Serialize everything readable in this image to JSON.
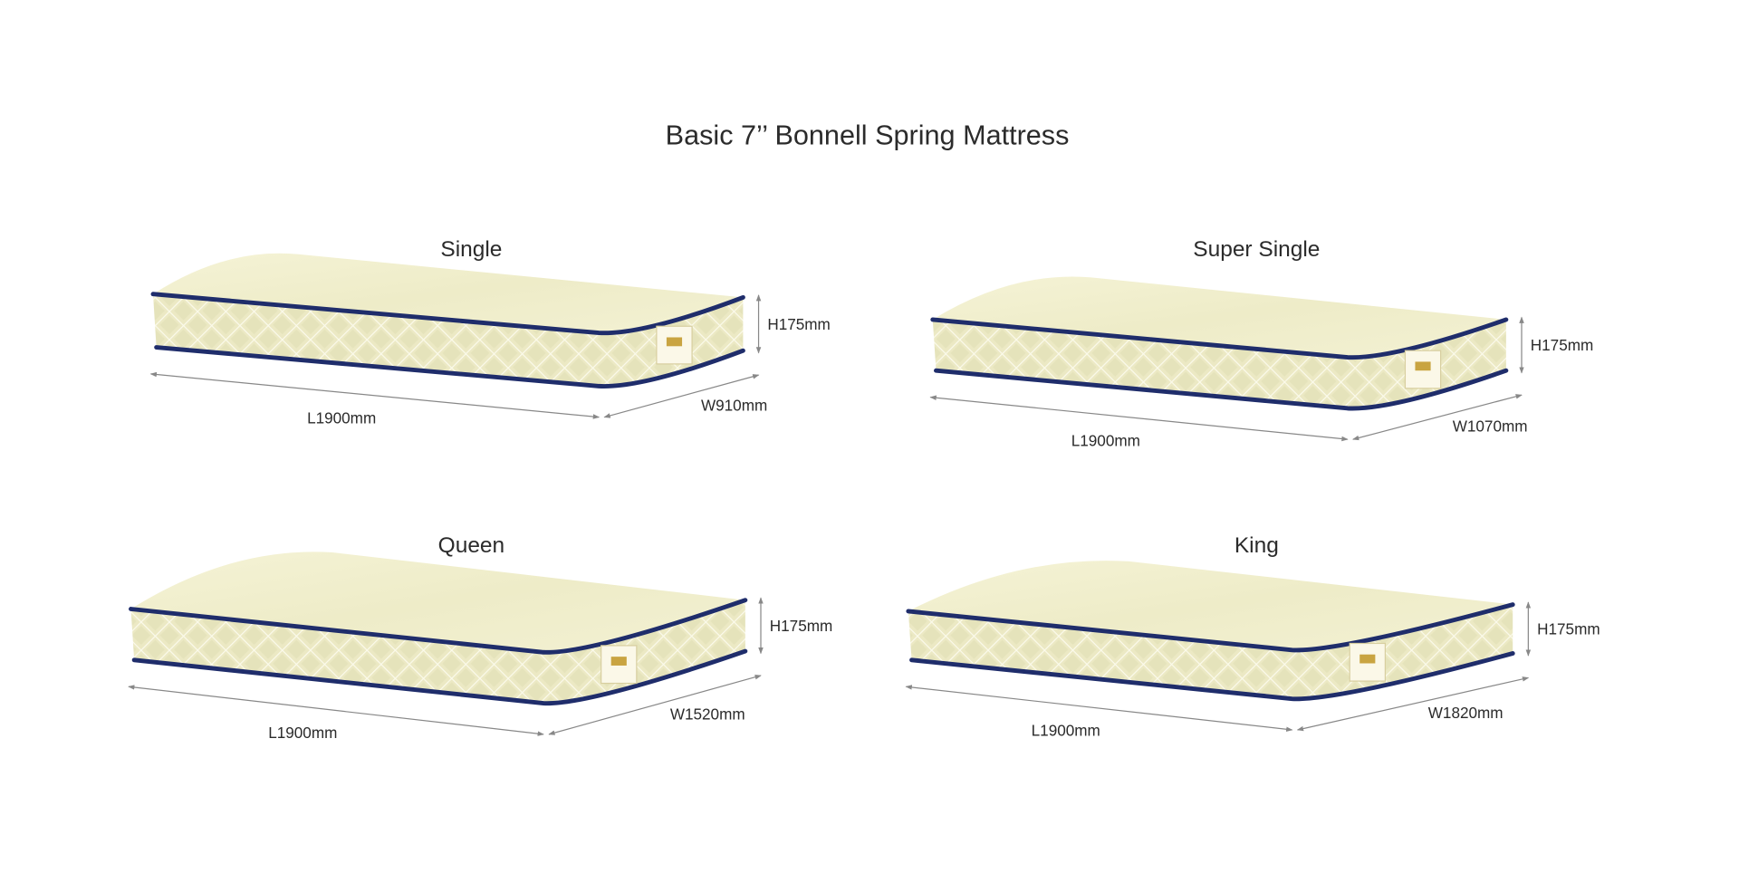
{
  "title": "Basic 7’’ Bonnell Spring Mattress",
  "mattresses": [
    {
      "name": "Single",
      "height": "H175mm",
      "length": "L1900mm",
      "width": "W910mm"
    },
    {
      "name": "Super Single",
      "height": "H175mm",
      "length": "L1900mm",
      "width": "W1070mm"
    },
    {
      "name": "Queen",
      "height": "H175mm",
      "length": "L1900mm",
      "width": "W1520mm"
    },
    {
      "name": "King",
      "height": "H175mm",
      "length": "L1900mm",
      "width": "W1820mm"
    }
  ]
}
